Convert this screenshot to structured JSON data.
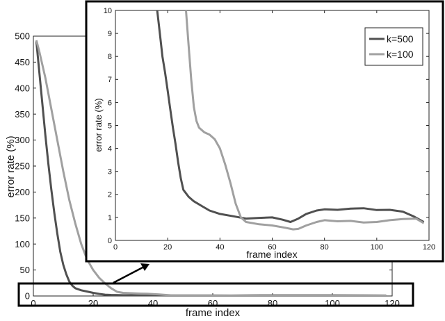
{
  "chart_data": [
    {
      "type": "line",
      "title": "",
      "xlabel": "frame index",
      "ylabel": "error rate (%)",
      "xlim": [
        0,
        120
      ],
      "ylim": [
        0,
        500
      ],
      "xticks": [
        "0",
        "20",
        "40",
        "60",
        "80",
        "100",
        "120"
      ],
      "yticks": [
        "0",
        "50",
        "100",
        "150",
        "200",
        "250",
        "300",
        "350",
        "400",
        "450",
        "500"
      ],
      "grid": false,
      "series": [
        {
          "name": "k=500",
          "color": "#505050",
          "points": [
            [
              1,
              490
            ],
            [
              2,
              430
            ],
            [
              3,
              370
            ],
            [
              4,
              310
            ],
            [
              5,
              255
            ],
            [
              6,
              205
            ],
            [
              7,
              160
            ],
            [
              8,
              120
            ],
            [
              9,
              85
            ],
            [
              10,
              60
            ],
            [
              11,
              42
            ],
            [
              12,
              28
            ],
            [
              13,
              20
            ],
            [
              14,
              15
            ],
            [
              16,
              11
            ],
            [
              18,
              8.5
            ],
            [
              20,
              6
            ],
            [
              22,
              4
            ],
            [
              24,
              2.5
            ],
            [
              26,
              2
            ],
            [
              30,
              1.5
            ],
            [
              36,
              1.2
            ],
            [
              40,
              1.1
            ],
            [
              50,
              0.95
            ],
            [
              60,
              1
            ],
            [
              66,
              0.85
            ],
            [
              70,
              1.1
            ],
            [
              76,
              1.3
            ],
            [
              80,
              1.35
            ],
            [
              90,
              1.4
            ],
            [
              100,
              1.33
            ],
            [
              110,
              1.25
            ],
            [
              118,
              0.8
            ]
          ]
        },
        {
          "name": "k=100",
          "color": "#a0a0a0",
          "points": [
            [
              1,
              492
            ],
            [
              2,
              470
            ],
            [
              4,
              420
            ],
            [
              6,
              360
            ],
            [
              8,
              300
            ],
            [
              10,
              240
            ],
            [
              12,
              185
            ],
            [
              14,
              140
            ],
            [
              16,
              100
            ],
            [
              18,
              70
            ],
            [
              20,
              50
            ],
            [
              22,
              35
            ],
            [
              24,
              24
            ],
            [
              26,
              15
            ],
            [
              28,
              8
            ],
            [
              30,
              6
            ],
            [
              34,
              5
            ],
            [
              36,
              4.6
            ],
            [
              38,
              4.3
            ],
            [
              42,
              3
            ],
            [
              46,
              1.4
            ],
            [
              50,
              0.8
            ],
            [
              55,
              0.7
            ],
            [
              60,
              0.65
            ],
            [
              65,
              0.5
            ],
            [
              70,
              0.48
            ],
            [
              75,
              0.75
            ],
            [
              80,
              0.85
            ],
            [
              90,
              0.8
            ],
            [
              96,
              0.75
            ],
            [
              100,
              0.85
            ],
            [
              110,
              0.95
            ],
            [
              118,
              0.75
            ]
          ]
        }
      ],
      "inset": {
        "xlim": [
          0,
          120
        ],
        "ylim": [
          0,
          10
        ],
        "xticks": [
          "0",
          "20",
          "40",
          "60",
          "80",
          "100",
          "120"
        ],
        "yticks": [
          "0",
          "1",
          "2",
          "3",
          "4",
          "5",
          "6",
          "7",
          "8",
          "9",
          "10"
        ],
        "xlabel": "frame index",
        "ylabel": "error rate (%)",
        "legend_position": "top-right",
        "series": [
          {
            "name": "k=500",
            "color": "#505050",
            "points": [
              [
                16,
                10
              ],
              [
                17,
                9
              ],
              [
                18,
                8
              ],
              [
                19,
                7.3
              ],
              [
                20,
                6.5
              ],
              [
                21,
                5.7
              ],
              [
                22,
                4.9
              ],
              [
                23,
                4.2
              ],
              [
                24,
                3.4
              ],
              [
                25,
                2.7
              ],
              [
                26,
                2.2
              ],
              [
                28,
                1.9
              ],
              [
                30,
                1.7
              ],
              [
                33,
                1.5
              ],
              [
                36,
                1.3
              ],
              [
                40,
                1.15
              ],
              [
                45,
                1.05
              ],
              [
                50,
                0.95
              ],
              [
                55,
                0.98
              ],
              [
                60,
                1.0
              ],
              [
                64,
                0.9
              ],
              [
                67,
                0.8
              ],
              [
                70,
                0.95
              ],
              [
                73,
                1.15
              ],
              [
                77,
                1.3
              ],
              [
                80,
                1.35
              ],
              [
                85,
                1.33
              ],
              [
                90,
                1.38
              ],
              [
                95,
                1.4
              ],
              [
                100,
                1.32
              ],
              [
                105,
                1.33
              ],
              [
                110,
                1.25
              ],
              [
                114,
                1.05
              ],
              [
                118,
                0.8
              ]
            ]
          },
          {
            "name": "k=100",
            "color": "#a0a0a0",
            "points": [
              [
                27,
                10
              ],
              [
                28,
                8.5
              ],
              [
                29,
                7
              ],
              [
                30,
                5.8
              ],
              [
                31,
                5.2
              ],
              [
                32,
                4.9
              ],
              [
                34,
                4.7
              ],
              [
                36,
                4.6
              ],
              [
                38,
                4.4
              ],
              [
                40,
                4.0
              ],
              [
                42,
                3.3
              ],
              [
                44,
                2.5
              ],
              [
                46,
                1.6
              ],
              [
                48,
                1.0
              ],
              [
                50,
                0.8
              ],
              [
                55,
                0.7
              ],
              [
                60,
                0.65
              ],
              [
                65,
                0.55
              ],
              [
                68,
                0.48
              ],
              [
                70,
                0.5
              ],
              [
                73,
                0.65
              ],
              [
                77,
                0.8
              ],
              [
                80,
                0.88
              ],
              [
                85,
                0.83
              ],
              [
                90,
                0.85
              ],
              [
                95,
                0.78
              ],
              [
                100,
                0.8
              ],
              [
                105,
                0.88
              ],
              [
                110,
                0.93
              ],
              [
                115,
                0.95
              ],
              [
                118,
                0.75
              ]
            ]
          }
        ]
      }
    }
  ]
}
